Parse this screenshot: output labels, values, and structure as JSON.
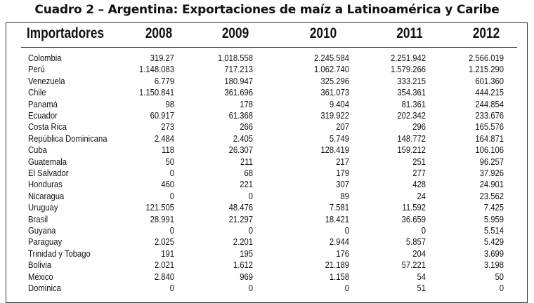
{
  "title": "Cuadro 2 – Argentina: Exportaciones de maíz a Latinoamérica y Caribe",
  "table": {
    "header": [
      "Importadores",
      "2008",
      "2009",
      "2010",
      "2011",
      "2012"
    ],
    "rows": [
      [
        "Colombia",
        "319.27",
        "1.018.558",
        "2.245.584",
        "2.251.942",
        "2.566.019"
      ],
      [
        "Perú",
        "1.148.083",
        "717.213",
        "1.062.740",
        "1.579.266",
        "1.215.290"
      ],
      [
        "Venezuela",
        "6.779",
        "180.947",
        "325.296",
        "333.215",
        "601.360"
      ],
      [
        "Chile",
        "1.150.841",
        "361.696",
        "361.073",
        "354.361",
        "444.215"
      ],
      [
        "Panamá",
        "98",
        "178",
        "9.404",
        "81.361",
        "244.854"
      ],
      [
        "Ecuador",
        "60.917",
        "61.368",
        "319.922",
        "202.342",
        "233.676"
      ],
      [
        "Costa Rica",
        "273",
        "266",
        "207",
        "296",
        "165.576"
      ],
      [
        "República Dominicana",
        "2.484",
        "2.405",
        "5.749",
        "148.772",
        "164.871"
      ],
      [
        "Cuba",
        "118",
        "26.307",
        "128.419",
        "159.212",
        "106.106"
      ],
      [
        "Guatemala",
        "50",
        "211",
        "217",
        "251",
        "96.257"
      ],
      [
        "El Salvador",
        "0",
        "68",
        "179",
        "277",
        "37.926"
      ],
      [
        "Honduras",
        "460",
        "221",
        "307",
        "428",
        "24.901"
      ],
      [
        "Nicaragua",
        "0",
        "0",
        "89",
        "24",
        "23.562"
      ],
      [
        "Uruguay",
        "121.505",
        "48.476",
        "7.581",
        "11.592",
        "7.425"
      ],
      [
        "Brasil",
        "28.991",
        "21.297",
        "18.421",
        "36.659",
        "5.959"
      ],
      [
        "Guyana",
        "0",
        "0",
        "0",
        "0",
        "5.514"
      ],
      [
        "Paraguay",
        "2.025",
        "2.201",
        "2.944",
        "5.857",
        "5.429"
      ],
      [
        "Trinidad y Tobago",
        "191",
        "195",
        "176",
        "204",
        "3.699"
      ],
      [
        "Bolivia",
        "2.021",
        "1.612",
        "21.189",
        "57.221",
        "3.198"
      ],
      [
        "México",
        "2.840",
        "969",
        "1.158",
        "54",
        "50"
      ],
      [
        "Dominica",
        "0",
        "0",
        "0",
        "51",
        "0"
      ]
    ]
  }
}
